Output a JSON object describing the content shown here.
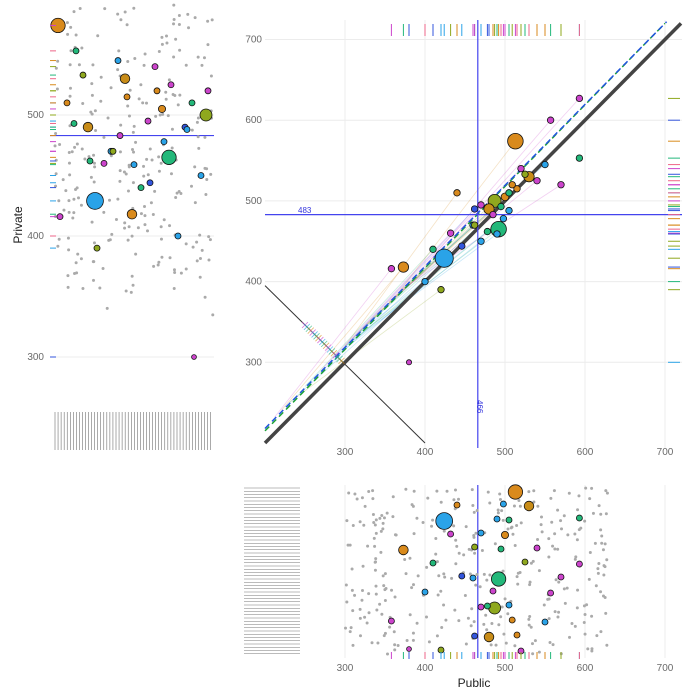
{
  "chart_data": {
    "type": "scatter",
    "title": "",
    "xlabel": "Public",
    "ylabel": "Private",
    "xlim": [
      200,
      720
    ],
    "ylim": [
      200,
      720
    ],
    "x_ticks": [
      300,
      400,
      500,
      600,
      700
    ],
    "y_ticks": [
      300,
      400,
      500,
      600,
      700
    ],
    "mean_private": 483,
    "mean_public": 466,
    "mean_private_label": "483",
    "mean_public_label": "466",
    "highlight_points": [
      {
        "x": 513,
        "y": 574,
        "size": 6,
        "color": "#d98a1c"
      },
      {
        "x": 424,
        "y": 429,
        "size": 7,
        "color": "#2aa3e8"
      },
      {
        "x": 373,
        "y": 418,
        "size": 4,
        "color": "#d98a1c"
      },
      {
        "x": 492,
        "y": 465,
        "size": 6,
        "color": "#23b87a"
      },
      {
        "x": 487,
        "y": 500,
        "size": 5,
        "color": "#8fa81e"
      },
      {
        "x": 480,
        "y": 490,
        "size": 4,
        "color": "#c88c18"
      },
      {
        "x": 530,
        "y": 530,
        "size": 4,
        "color": "#c88c18"
      },
      {
        "x": 500,
        "y": 505,
        "size": 3,
        "color": "#d98a1c"
      },
      {
        "x": 593,
        "y": 627,
        "size": 2.5,
        "color": "#cc44cc"
      },
      {
        "x": 557,
        "y": 600,
        "size": 2.5,
        "color": "#cc44cc"
      },
      {
        "x": 550,
        "y": 545,
        "size": 2.5,
        "color": "#2aa3e8"
      },
      {
        "x": 520,
        "y": 540,
        "size": 2.5,
        "color": "#cc44cc"
      },
      {
        "x": 505,
        "y": 510,
        "size": 2.5,
        "color": "#23b87a"
      },
      {
        "x": 495,
        "y": 493,
        "size": 2.5,
        "color": "#23b87a"
      },
      {
        "x": 460,
        "y": 470,
        "size": 2.5,
        "color": "#2aa3e8"
      },
      {
        "x": 470,
        "y": 495,
        "size": 2.5,
        "color": "#cc44cc"
      },
      {
        "x": 462,
        "y": 490,
        "size": 2.5,
        "color": "#3355dd"
      },
      {
        "x": 440,
        "y": 510,
        "size": 2.5,
        "color": "#d98a1c"
      },
      {
        "x": 432,
        "y": 460,
        "size": 2.5,
        "color": "#cc44cc"
      },
      {
        "x": 410,
        "y": 440,
        "size": 2.5,
        "color": "#23b87a"
      },
      {
        "x": 400,
        "y": 400,
        "size": 2.5,
        "color": "#2aa3e8"
      },
      {
        "x": 358,
        "y": 416,
        "size": 2.5,
        "color": "#cc44cc"
      },
      {
        "x": 420,
        "y": 390,
        "size": 2.5,
        "color": "#8fa81e"
      },
      {
        "x": 490,
        "y": 459,
        "size": 2.5,
        "color": "#2aa3e8"
      },
      {
        "x": 540,
        "y": 525,
        "size": 2.5,
        "color": "#cc44cc"
      },
      {
        "x": 570,
        "y": 520,
        "size": 2.5,
        "color": "#cc44cc"
      },
      {
        "x": 478,
        "y": 462,
        "size": 2.5,
        "color": "#23b87a"
      },
      {
        "x": 515,
        "y": 515,
        "size": 2.5,
        "color": "#d98a1c"
      },
      {
        "x": 498,
        "y": 478,
        "size": 2.5,
        "color": "#2aa3e8"
      },
      {
        "x": 470,
        "y": 450,
        "size": 2.5,
        "color": "#2aa3e8"
      },
      {
        "x": 525,
        "y": 533,
        "size": 2.5,
        "color": "#8fa81e"
      },
      {
        "x": 485,
        "y": 483,
        "size": 2.5,
        "color": "#cc44cc"
      },
      {
        "x": 509,
        "y": 520,
        "size": 2.5,
        "color": "#d98a1c"
      },
      {
        "x": 380,
        "y": 300,
        "size": 2,
        "color": "#cc44cc"
      },
      {
        "x": 593,
        "y": 553,
        "size": 2.5,
        "color": "#23b87a"
      },
      {
        "x": 462,
        "y": 470,
        "size": 2.5,
        "color": "#8fa81e"
      },
      {
        "x": 446,
        "y": 444,
        "size": 2.5,
        "color": "#3355dd"
      },
      {
        "x": 505,
        "y": 488,
        "size": 2.5,
        "color": "#2aa3e8"
      }
    ]
  }
}
